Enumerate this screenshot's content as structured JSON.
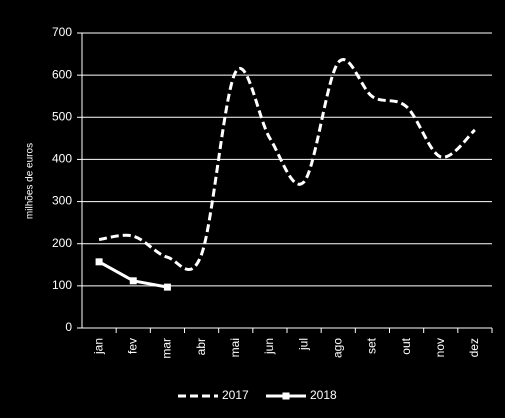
{
  "chart_data": {
    "type": "line",
    "y_label": "milhões de euros",
    "categories": [
      "jan",
      "fev",
      "mar",
      "abr",
      "mai",
      "jun",
      "jul",
      "ago",
      "set",
      "out",
      "nov",
      "dez"
    ],
    "series": [
      {
        "name": "2017",
        "color": "#ffffff",
        "dash": true,
        "smooth": true,
        "marker": false,
        "values": [
          210,
          218,
          168,
          175,
          608,
          450,
          347,
          630,
          549,
          525,
          406,
          470
        ]
      },
      {
        "name": "2018",
        "color": "#ffffff",
        "dash": false,
        "smooth": false,
        "marker": true,
        "values": [
          157,
          112,
          97,
          null,
          null,
          null,
          null,
          null,
          null,
          null,
          null,
          null
        ]
      }
    ],
    "ylim": [
      0,
      700
    ],
    "yticks": [
      0,
      100,
      200,
      300,
      400,
      500,
      600,
      700
    ],
    "grid": true,
    "legend": "bottom"
  }
}
